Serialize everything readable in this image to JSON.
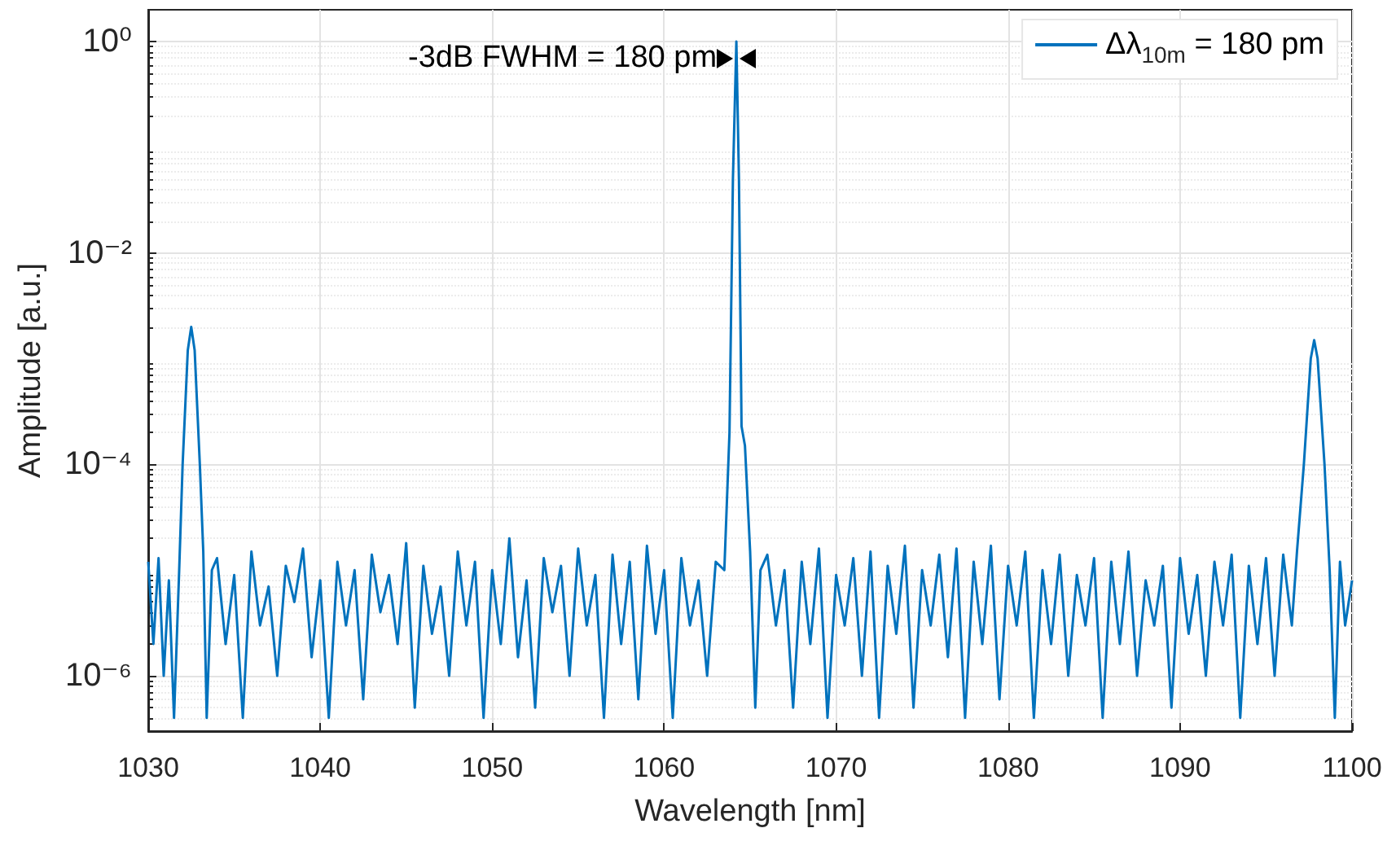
{
  "chart_data": {
    "type": "line",
    "xlabel": "Wavelength [nm]",
    "ylabel": "Amplitude [a.u.]",
    "log": "y",
    "grid": true,
    "legend": "top right",
    "line_style": "solid",
    "marker": "none",
    "xlim": [
      1030,
      1100
    ],
    "xticks": [
      1030,
      1040,
      1050,
      1060,
      1070,
      1080,
      1090,
      1100
    ],
    "ylim": [
      3e-07,
      2
    ],
    "yticks": [
      {
        "value": 1e-06,
        "label": "10⁻⁶"
      },
      {
        "value": 0.0001,
        "label": "10⁻⁴"
      },
      {
        "value": 0.01,
        "label": "10⁻²"
      },
      {
        "value": 1,
        "label": "10⁰"
      }
    ],
    "annotations": [
      {
        "text": "-3dB FWHM = 180 pm",
        "x": 1064.2,
        "y": 0.7
      }
    ],
    "series": [
      {
        "name": "Δλ$_{10m}$ = 180 pm",
        "color": "#0072bd",
        "x": [
          1030.0,
          1030.3,
          1030.6,
          1030.9,
          1031.2,
          1031.5,
          1031.8,
          1032.0,
          1032.3,
          1032.5,
          1032.7,
          1033.0,
          1033.2,
          1033.4,
          1033.7,
          1034,
          1034.5,
          1035,
          1035.5,
          1036,
          1036.5,
          1037,
          1037.5,
          1038,
          1038.5,
          1039,
          1039.5,
          1040,
          1040.5,
          1041,
          1041.5,
          1042,
          1042.5,
          1043,
          1043.5,
          1044,
          1044.5,
          1045,
          1045.5,
          1046,
          1046.5,
          1047,
          1047.5,
          1048,
          1048.5,
          1049,
          1049.5,
          1050,
          1050.5,
          1051,
          1051.5,
          1052,
          1052.5,
          1053,
          1053.5,
          1054,
          1054.5,
          1055,
          1055.5,
          1056,
          1056.5,
          1057,
          1057.5,
          1058,
          1058.5,
          1059,
          1059.5,
          1060,
          1060.5,
          1061,
          1061.5,
          1062,
          1062.5,
          1063,
          1063.5,
          1063.8,
          1064.0,
          1064.2,
          1064.35,
          1064.5,
          1064.7,
          1065.0,
          1065.3,
          1065.6,
          1066,
          1066.5,
          1067,
          1067.5,
          1068,
          1068.5,
          1069,
          1069.5,
          1070,
          1070.5,
          1071,
          1071.5,
          1072,
          1072.5,
          1073,
          1073.5,
          1074,
          1074.5,
          1075,
          1075.5,
          1076,
          1076.5,
          1077,
          1077.5,
          1078,
          1078.5,
          1079,
          1079.5,
          1080,
          1080.5,
          1081,
          1081.5,
          1082,
          1082.5,
          1083,
          1083.5,
          1084,
          1084.5,
          1085,
          1085.5,
          1086,
          1086.5,
          1087,
          1087.5,
          1088,
          1088.5,
          1089,
          1089.5,
          1090,
          1090.5,
          1091,
          1091.5,
          1092,
          1092.5,
          1093,
          1093.5,
          1094,
          1094.5,
          1095,
          1095.5,
          1096,
          1096.5,
          1096.8,
          1097.2,
          1097.6,
          1097.8,
          1098.0,
          1098.4,
          1098.7,
          1099.0,
          1099.3,
          1099.6,
          1100
        ],
        "values": [
          1.2e-05,
          2e-06,
          1.3e-05,
          1e-06,
          8e-06,
          4e-07,
          1e-05,
          0.0001,
          0.0012,
          0.002,
          0.0012,
          0.0001,
          1.5e-05,
          4e-07,
          1e-05,
          1.3e-05,
          2e-06,
          9e-06,
          4e-07,
          1.5e-05,
          3e-06,
          7e-06,
          1e-06,
          1.1e-05,
          5e-06,
          1.6e-05,
          1.5e-06,
          8e-06,
          4e-07,
          1.2e-05,
          3e-06,
          1e-05,
          6e-07,
          1.4e-05,
          4e-06,
          9e-06,
          2e-06,
          1.8e-05,
          5e-07,
          1.1e-05,
          2.5e-06,
          7e-06,
          1e-06,
          1.5e-05,
          3e-06,
          1.2e-05,
          4e-07,
          1e-05,
          2e-06,
          2e-05,
          1.5e-06,
          8e-06,
          5e-07,
          1.3e-05,
          4e-06,
          1.1e-05,
          1e-06,
          1.6e-05,
          3e-06,
          9e-06,
          4e-07,
          1.4e-05,
          2e-06,
          1.2e-05,
          6e-07,
          1.7e-05,
          2.5e-06,
          1e-05,
          4e-07,
          1.3e-05,
          3e-06,
          8e-06,
          1e-06,
          1.2e-05,
          1e-05,
          0.0002,
          0.05,
          1,
          0.05,
          0.00023,
          0.00015,
          1.5e-05,
          5e-07,
          1e-05,
          1.4e-05,
          3e-06,
          1e-05,
          5e-07,
          1.2e-05,
          2e-06,
          1.6e-05,
          4e-07,
          9e-06,
          3e-06,
          1.3e-05,
          1e-06,
          1.5e-05,
          4e-07,
          1.1e-05,
          2.5e-06,
          1.7e-05,
          5e-07,
          1e-05,
          3e-06,
          1.4e-05,
          1.5e-06,
          1.6e-05,
          4e-07,
          1.2e-05,
          2e-06,
          1.7e-05,
          6e-07,
          1.1e-05,
          3e-06,
          1.5e-05,
          4e-07,
          1e-05,
          2e-06,
          1.4e-05,
          1e-06,
          9e-06,
          3e-06,
          1.3e-05,
          4e-07,
          1.2e-05,
          2e-06,
          1.5e-05,
          1e-06,
          8e-06,
          3e-06,
          1.1e-05,
          5e-07,
          1.3e-05,
          2.5e-06,
          9e-06,
          1e-06,
          1.2e-05,
          3e-06,
          1.4e-05,
          4e-07,
          1.1e-05,
          2e-06,
          1.3e-05,
          1e-06,
          1.4e-05,
          3e-06,
          1.5e-05,
          0.0001,
          0.001,
          0.0015,
          0.001,
          0.0001,
          1e-05,
          4e-07,
          1.2e-05,
          3e-06,
          8e-06
        ]
      }
    ]
  }
}
